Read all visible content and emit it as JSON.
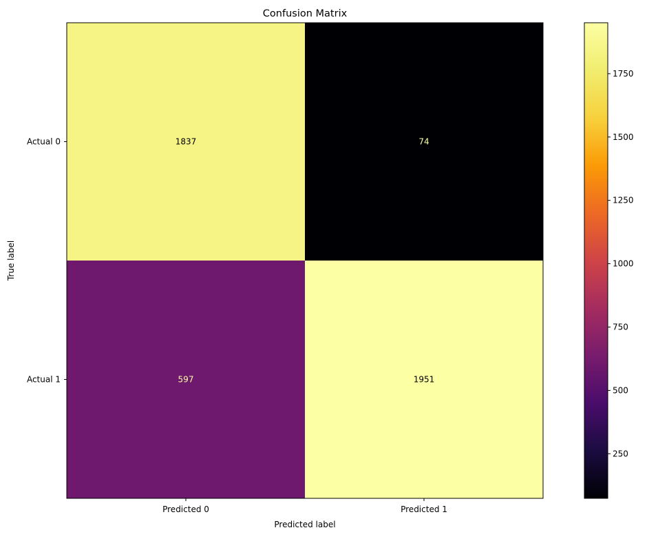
{
  "chart_data": {
    "type": "heatmap",
    "title": "Confusion Matrix",
    "xlabel": "Predicted label",
    "ylabel": "True label",
    "x_categories": [
      "Predicted 0",
      "Predicted 1"
    ],
    "y_categories": [
      "Actual 0",
      "Actual 1"
    ],
    "values": [
      [
        1837,
        74
      ],
      [
        597,
        1951
      ]
    ],
    "colormap": "inferno",
    "colorbar": {
      "range": [
        74,
        1951
      ],
      "ticks": [
        250,
        500,
        750,
        1000,
        1250,
        1500,
        1750
      ]
    },
    "grid": false
  }
}
